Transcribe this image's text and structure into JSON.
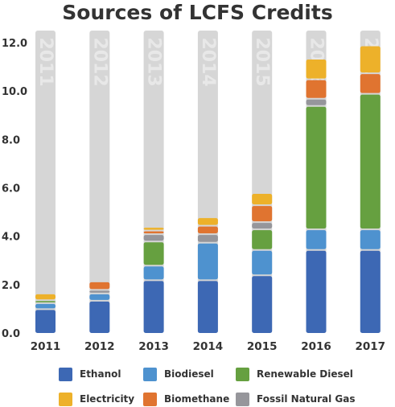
{
  "chart_data": {
    "type": "bar",
    "stacked": true,
    "title": "Sources of LCFS Credits",
    "categories": [
      "2011",
      "2012",
      "2013",
      "2014",
      "2015",
      "2016",
      "2017"
    ],
    "ylim": [
      0,
      12
    ],
    "yticks": [
      "0.0",
      "2.0",
      "4.0",
      "6.0",
      "8.0",
      "10.0",
      "12.0"
    ],
    "background_bar_max": 12.5,
    "watermark_labels": [
      "2011",
      "2012",
      "2013",
      "2014",
      "2015",
      "2016",
      "2017"
    ],
    "series": [
      {
        "name": "Ethanol",
        "color": "#3D68B4",
        "values": [
          0.95,
          1.3,
          2.15,
          2.15,
          2.35,
          3.4,
          3.4
        ]
      },
      {
        "name": "Biodiesel",
        "color": "#4E92CF",
        "values": [
          0.25,
          0.3,
          0.6,
          1.55,
          1.05,
          0.85,
          0.85
        ]
      },
      {
        "name": "Renewable Diesel",
        "color": "#66A040",
        "values": [
          0.12,
          0.0,
          1.0,
          0.0,
          0.85,
          5.1,
          5.6
        ]
      },
      {
        "name": "Fossil Natural Gas",
        "color": "#96969B",
        "values": [
          0.0,
          0.15,
          0.3,
          0.35,
          0.3,
          0.3,
          0.0
        ]
      },
      {
        "name": "Biomethane",
        "color": "#E07430",
        "values": [
          0.0,
          0.35,
          0.15,
          0.35,
          0.7,
          0.8,
          0.85
        ]
      },
      {
        "name": "Electricity",
        "color": "#EDB12A",
        "values": [
          0.28,
          0.0,
          0.15,
          0.35,
          0.5,
          0.85,
          1.15
        ]
      }
    ],
    "grid": false,
    "legend_position": "bottom"
  },
  "legend": [
    {
      "label": "Ethanol",
      "color": "#3D68B4"
    },
    {
      "label": "Biodiesel",
      "color": "#4E92CF"
    },
    {
      "label": "Renewable Diesel",
      "color": "#66A040"
    },
    {
      "label": "Electricity",
      "color": "#EDB12A"
    },
    {
      "label": "Biomethane",
      "color": "#E07430"
    },
    {
      "label": "Fossil Natural Gas",
      "color": "#96969B"
    }
  ]
}
